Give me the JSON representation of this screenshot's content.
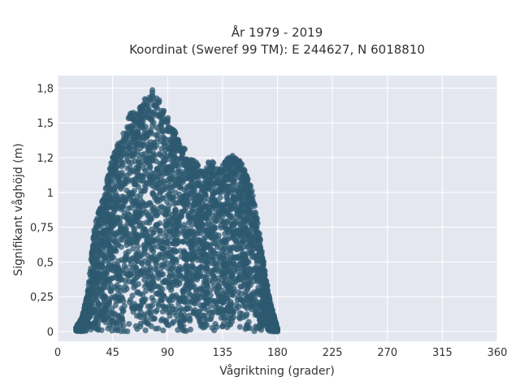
{
  "chart_data": {
    "type": "scatter",
    "title_lines": [
      "År 1979 - 2019",
      "Koordinat (Sweref 99 TM): E 244627, N 6018810"
    ],
    "xlabel": "Vågriktning (grader)",
    "ylabel": "Signifikant våghöjd (m)",
    "xlim": [
      0,
      360
    ],
    "ylim": [
      -0.07,
      1.84
    ],
    "x_ticks": [
      0,
      45,
      90,
      135,
      180,
      225,
      270,
      315,
      360
    ],
    "x_tick_labels": [
      "0",
      "45",
      "90",
      "135",
      "180",
      "225",
      "270",
      "315",
      "360"
    ],
    "y_ticks": [
      0,
      0.25,
      0.5,
      0.75,
      1,
      1.25,
      1.5,
      1.75
    ],
    "y_tick_labels": [
      "0",
      "0,25",
      "0,5",
      "0,75",
      "1",
      "1,2",
      "1,5",
      "1,8"
    ],
    "grid": true,
    "colors": {
      "marker": "#2e5a70",
      "plot_bg": "#e5e7f0",
      "grid": "#ffffff"
    },
    "envelope": {
      "x": [
        15,
        20,
        25,
        30,
        35,
        40,
        45,
        50,
        55,
        60,
        65,
        70,
        75,
        80,
        85,
        90,
        95,
        100,
        105,
        110,
        115,
        120,
        125,
        130,
        135,
        140,
        145,
        150,
        155,
        160,
        165,
        170,
        175,
        180
      ],
      "y_max": [
        0.03,
        0.1,
        0.3,
        0.75,
        0.9,
        1.08,
        1.25,
        1.38,
        1.48,
        1.58,
        1.63,
        1.66,
        1.72,
        1.76,
        1.62,
        1.55,
        1.45,
        1.38,
        1.3,
        1.25,
        1.2,
        1.15,
        1.25,
        1.18,
        1.2,
        1.25,
        1.28,
        1.22,
        1.12,
        1.0,
        0.72,
        0.42,
        0.18,
        0.02
      ]
    }
  }
}
